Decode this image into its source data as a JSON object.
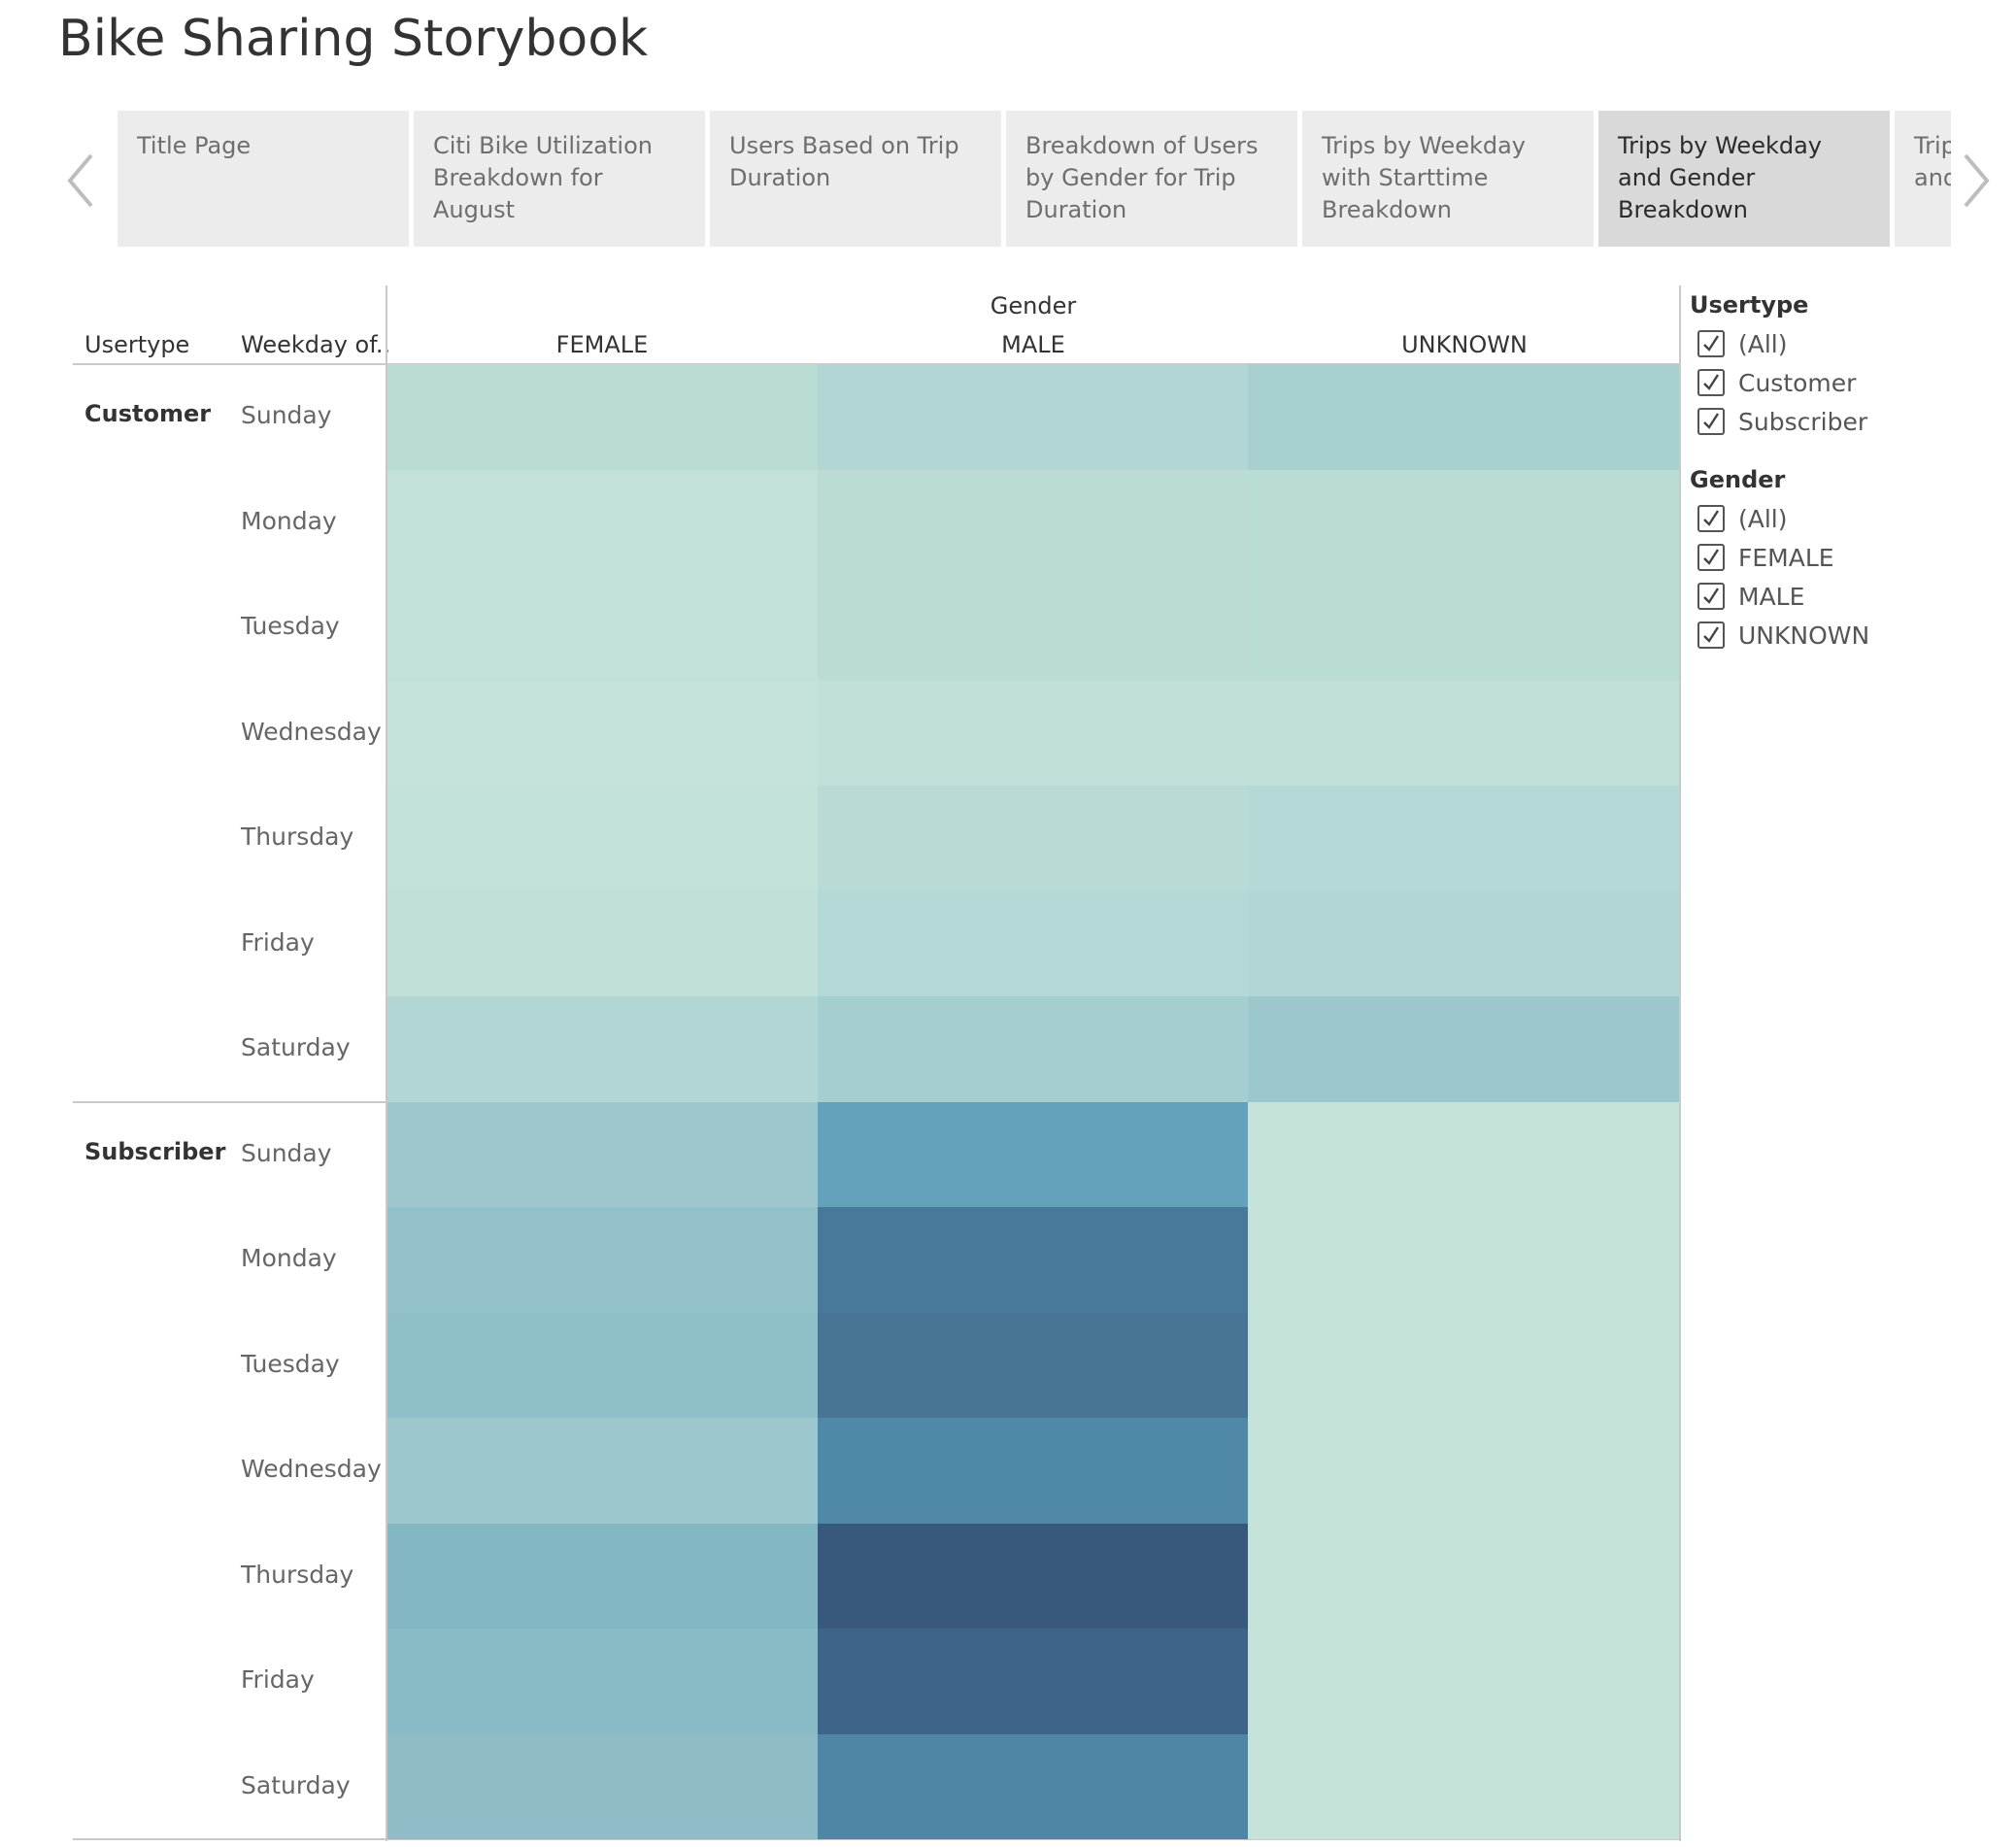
{
  "storybook": {
    "title": "Bike Sharing Storybook"
  },
  "navigator": {
    "tabs": [
      {
        "label": "Title Page",
        "active": false
      },
      {
        "label": "Citi Bike Utilization Breakdown for August",
        "active": false
      },
      {
        "label": "Users Based on Trip Duration",
        "active": false
      },
      {
        "label": "Breakdown of Users by Gender for Trip Duration",
        "active": false
      },
      {
        "label": "Trips by Weekday with Starttime Breakdown",
        "active": false
      },
      {
        "label": "Trips by Weekday and Gender Breakdown",
        "active": true
      },
      {
        "label": "Trips by Weekday and Gender",
        "active": false
      }
    ],
    "prev_icon": "chevron-left-icon",
    "next_icon": "chevron-right-icon"
  },
  "table": {
    "usertype_header": "Usertype",
    "weekday_header": "Weekday of..",
    "gender_header": "Gender",
    "columns": [
      "FEMALE",
      "MALE",
      "UNKNOWN"
    ],
    "groups": [
      {
        "usertype": "Customer",
        "weekdays": [
          "Sunday",
          "Monday",
          "Tuesday",
          "Wednesday",
          "Thursday",
          "Friday",
          "Saturday"
        ]
      },
      {
        "usertype": "Subscriber",
        "weekdays": [
          "Sunday",
          "Monday",
          "Tuesday",
          "Wednesday",
          "Thursday",
          "Friday",
          "Saturday"
        ]
      }
    ]
  },
  "chart_data": {
    "type": "heatmap",
    "x_categories": [
      "FEMALE",
      "MALE",
      "UNKNOWN"
    ],
    "x_title": "Gender",
    "row_header_titles": [
      "Usertype",
      "Weekday of.."
    ],
    "row_groups": [
      {
        "name": "Customer",
        "rows": [
          "Sunday",
          "Monday",
          "Tuesday",
          "Wednesday",
          "Thursday",
          "Friday",
          "Saturday"
        ]
      },
      {
        "name": "Subscriber",
        "rows": [
          "Sunday",
          "Monday",
          "Tuesday",
          "Wednesday",
          "Thursday",
          "Friday",
          "Saturday"
        ]
      }
    ],
    "color_scale": [
      "#c6e4da",
      "#365479"
    ],
    "cells": [
      [
        "#b9dcd5",
        "#b1d6d4",
        "#a8d0d1"
      ],
      [
        "#c2e1d9",
        "#badcd5",
        "#b9dcd5"
      ],
      [
        "#c2e1d9",
        "#badcd5",
        "#b9dcd5"
      ],
      [
        "#c5e3db",
        "#c1e0d9",
        "#c1e0d9"
      ],
      [
        "#c2e1d9",
        "#b8dbd5",
        "#b5d9d6"
      ],
      [
        "#c0e0d8",
        "#b3d8d5",
        "#b1d6d4"
      ],
      [
        "#b2d6d4",
        "#a5ced0",
        "#9cc7cd"
      ],
      [
        "#9dc7cd",
        "#64a1bb",
        "#c6e3da"
      ],
      [
        "#92c1c9",
        "#48799a",
        "#c6e3da"
      ],
      [
        "#8fbfc8",
        "#487596",
        "#c6e3da"
      ],
      [
        "#9cc7cd",
        "#5088a8",
        "#c6e3da"
      ],
      [
        "#82b7c3",
        "#38587d",
        "#c6e3da"
      ],
      [
        "#88bbc5",
        "#3f6489",
        "#c6e3da"
      ],
      [
        "#8ebdc7",
        "#4f86a6",
        "#c6e3da"
      ]
    ]
  },
  "filters": [
    {
      "title": "Usertype",
      "options": [
        {
          "label": "(All)",
          "checked": true
        },
        {
          "label": "Customer",
          "checked": true
        },
        {
          "label": "Subscriber",
          "checked": true
        }
      ]
    },
    {
      "title": "Gender",
      "options": [
        {
          "label": "(All)",
          "checked": true
        },
        {
          "label": "FEMALE",
          "checked": true
        },
        {
          "label": "MALE",
          "checked": true
        },
        {
          "label": "UNKNOWN",
          "checked": true
        }
      ]
    }
  ]
}
